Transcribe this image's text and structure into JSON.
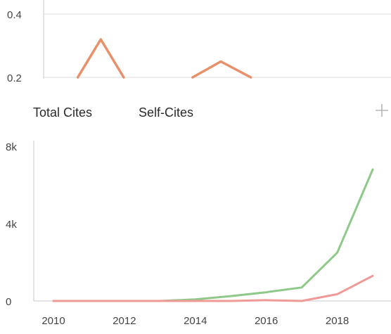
{
  "chart_data": [
    {
      "type": "line",
      "ylim": [
        0.2,
        0.4
      ],
      "yticks": [
        "0.4",
        "0.2"
      ],
      "grid": true,
      "series": [
        {
          "color": "#e8906a",
          "segments": [
            [
              [
                2010.65,
                0.2
              ],
              [
                2011.3,
                0.32
              ],
              [
                2011.95,
                0.2
              ]
            ],
            [
              [
                2013.9,
                0.2
              ],
              [
                2014.7,
                0.25
              ],
              [
                2015.55,
                0.2
              ]
            ]
          ]
        }
      ]
    },
    {
      "type": "line",
      "ylim": [
        0,
        8000
      ],
      "yticks": [
        {
          "label": "8k",
          "value": 8000
        },
        {
          "label": "4k",
          "value": 4000
        },
        {
          "label": "0",
          "value": 0
        }
      ],
      "x": [
        2010,
        2011,
        2012,
        2013,
        2014,
        2015,
        2016,
        2017,
        2018,
        2019
      ],
      "xticks": [
        "2010",
        "2012",
        "2014",
        "2016",
        "2018"
      ],
      "series": [
        {
          "name": "Total Cites",
          "color": "#8fc98a",
          "values": [
            0,
            0,
            0,
            0,
            80,
            250,
            450,
            700,
            2500,
            6800
          ]
        },
        {
          "name": "Self-Cites",
          "color": "#ef9a96",
          "values": [
            0,
            0,
            0,
            0,
            0,
            0,
            40,
            0,
            350,
            1300
          ]
        }
      ]
    }
  ],
  "legend": {
    "total_label": "Total Cites",
    "self_label": "Self-Cites"
  },
  "icons": {
    "add": "plus-icon"
  }
}
